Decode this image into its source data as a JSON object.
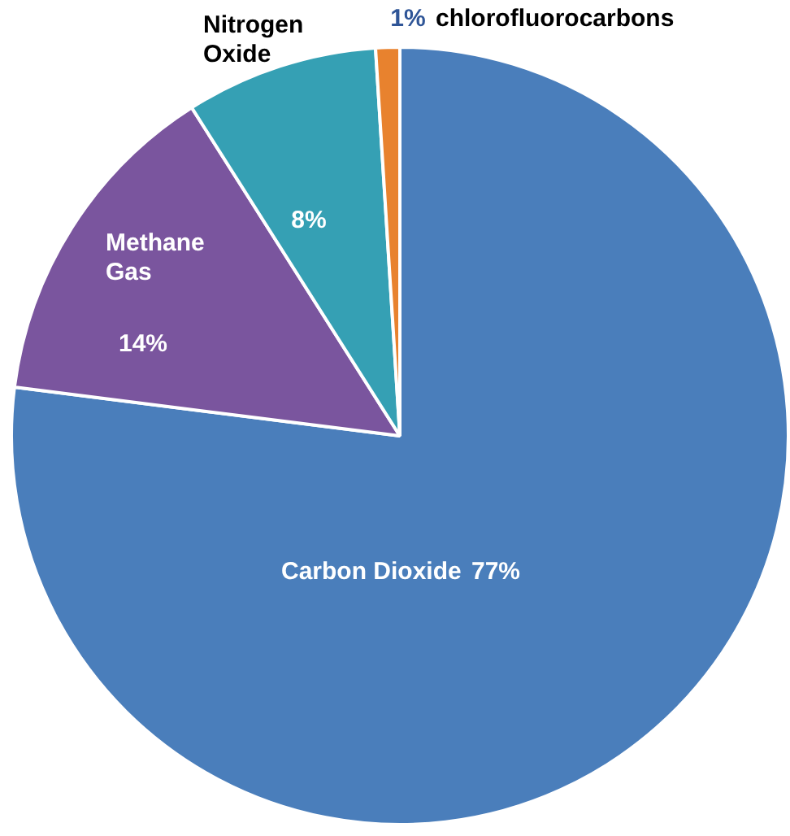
{
  "chart_data": {
    "type": "pie",
    "categories": [
      "Carbon Dioxide",
      "Methane Gas",
      "Nitrogen Oxide",
      "chlorofluorocarbons"
    ],
    "values": [
      77,
      14,
      8,
      1
    ],
    "colors": [
      "#4a7ebb",
      "#7a559e",
      "#35a0b4",
      "#e8822e"
    ],
    "value_labels": [
      "77%",
      "14%",
      "8%",
      "1%"
    ],
    "legend": false
  }
}
